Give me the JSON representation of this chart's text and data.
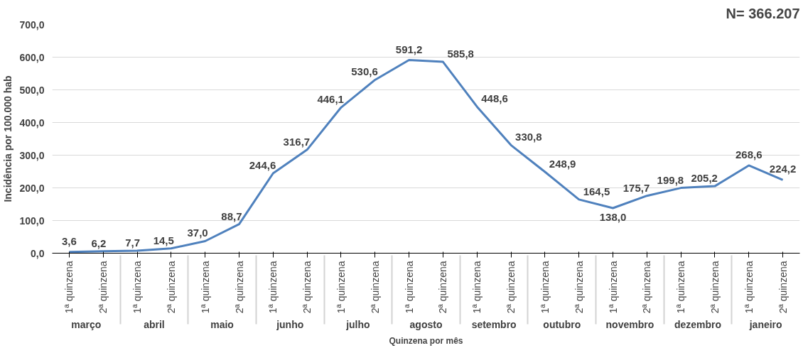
{
  "chart_data": {
    "type": "line",
    "xlabel": "Quinzena por mês",
    "ylabel": "Incidência por 100.000 hab",
    "categories": [
      "1ª quinzena",
      "2ª quinzena",
      "1ª quinzena",
      "2ª quinzena",
      "1ª quinzena",
      "2ª quinzena",
      "1ª quinzena",
      "2ª quinzena",
      "1ª quinzena",
      "2ª quinzena",
      "1ª quinzena",
      "2ª quinzena",
      "1ª quinzena",
      "2ª quinzena",
      "1ª quinzena",
      "2ª quinzena",
      "1ª quinzena",
      "2ª quinzena",
      "1ª quinzena",
      "2ª quinzena",
      "1ª quinzena",
      "2ª quinzena"
    ],
    "series": [
      {
        "color": "#4f81bd",
        "values": [
          3.6,
          6.2,
          7.7,
          14.5,
          37.0,
          88.7,
          244.6,
          316.7,
          446.1,
          530.6,
          591.2,
          585.8,
          448.6,
          330.8,
          248.9,
          164.5,
          138.0,
          175.7,
          199.8,
          205.2,
          268.6,
          224.2
        ],
        "value_labels": [
          "3,6",
          "6,2",
          "7,7",
          "14,5",
          "37,0",
          "88,7",
          "244,6",
          "316,7",
          "446,1",
          "530,6",
          "591,2",
          "585,8",
          "448,6",
          "330,8",
          "248,9",
          "164,5",
          "138,0",
          "175,7",
          "199,8",
          "205,2",
          "268,6",
          "224,2"
        ]
      }
    ],
    "annotations": [
      "N= 366.207",
      "março",
      "abril",
      "maio",
      "junho",
      "julho",
      "agosto",
      "setembro",
      "outubro",
      "novembro",
      "dezembro",
      "janeiro"
    ],
    "ylim": [
      0,
      700
    ],
    "yticks": [
      {
        "value": 0,
        "label": "0,0"
      },
      {
        "value": 100,
        "label": "100,0"
      },
      {
        "value": 200,
        "label": "200,0"
      },
      {
        "value": 300,
        "label": "300,0"
      },
      {
        "value": 400,
        "label": "400,0"
      },
      {
        "value": 500,
        "label": "500,0"
      },
      {
        "value": 600,
        "label": "600,0"
      },
      {
        "value": 700,
        "label": "700,0"
      }
    ],
    "grid": "y",
    "marker": "none",
    "line_style": "solid"
  }
}
